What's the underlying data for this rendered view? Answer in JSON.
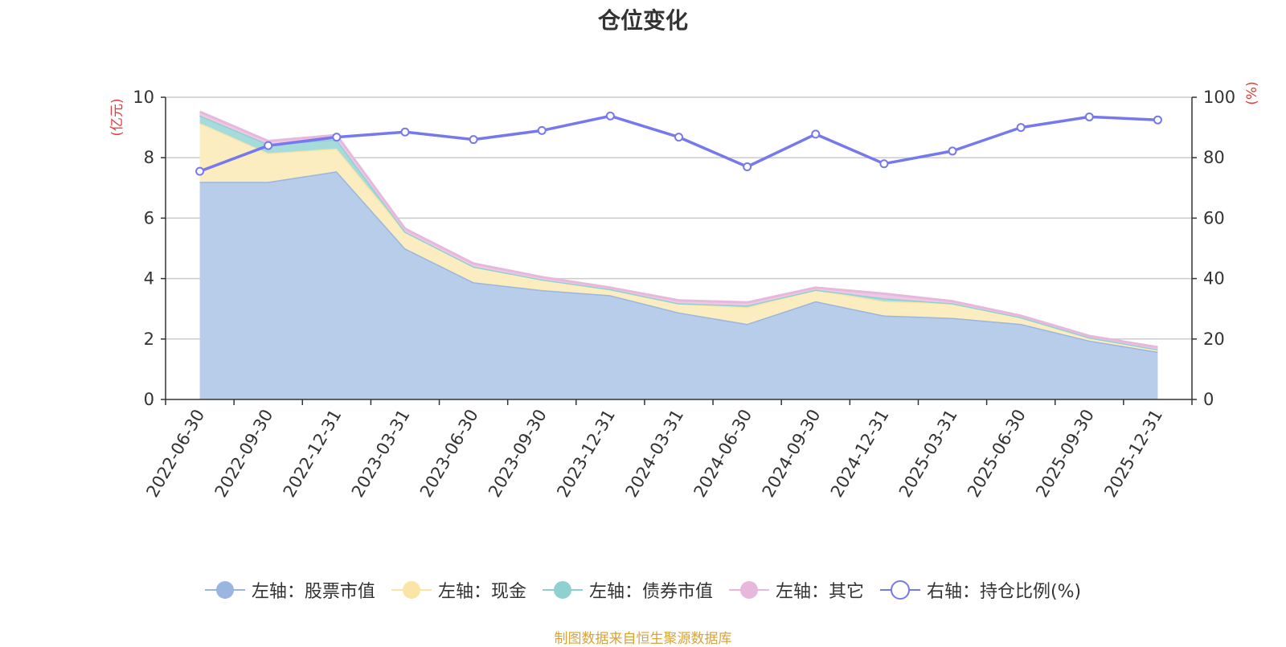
{
  "chart_data": {
    "type": "area",
    "title": "仓位变化",
    "categories": [
      "2022-06-30",
      "2022-09-30",
      "2022-12-31",
      "2023-03-31",
      "2023-06-30",
      "2023-09-30",
      "2023-12-31",
      "2024-03-31",
      "2024-06-30",
      "2024-09-30",
      "2024-12-31",
      "2025-03-31",
      "2025-06-30",
      "2025-09-30",
      "2025-12-31"
    ],
    "left_axis": {
      "label": "(亿元)",
      "ylim": [
        0,
        10
      ],
      "ticks": [
        0,
        2,
        4,
        6,
        8,
        10
      ]
    },
    "right_axis": {
      "label": "(%)",
      "ylim": [
        0,
        100
      ],
      "ticks": [
        0,
        20,
        40,
        60,
        80,
        100
      ]
    },
    "series": [
      {
        "name": "左轴：股票市值",
        "axis": "left",
        "stacked": true,
        "color": "#9ab6e0",
        "fill": "#b7cdea",
        "values": [
          7.2,
          7.2,
          7.55,
          5.0,
          3.88,
          3.62,
          3.45,
          2.88,
          2.5,
          3.25,
          2.78,
          2.7,
          2.5,
          1.95,
          1.58
        ]
      },
      {
        "name": "左轴：现金",
        "axis": "left",
        "stacked": true,
        "color": "#fbe5a6",
        "fill": "#fbedc0",
        "values": [
          1.95,
          0.95,
          0.75,
          0.55,
          0.52,
          0.35,
          0.2,
          0.3,
          0.55,
          0.38,
          0.47,
          0.48,
          0.22,
          0.1,
          0.08
        ]
      },
      {
        "name": "左轴：债券市值",
        "axis": "left",
        "stacked": true,
        "color": "#8fd1d1",
        "fill": "#a6dbdb",
        "values": [
          0.25,
          0.3,
          0.3,
          0.0,
          0.0,
          0.0,
          0.0,
          0.0,
          0.06,
          0.0,
          0.1,
          0.0,
          0.0,
          0.0,
          0.0
        ]
      },
      {
        "name": "左轴：其它",
        "axis": "left",
        "stacked": true,
        "color": "#e7b7dc",
        "fill": "#efc8e6",
        "values": [
          0.12,
          0.1,
          0.15,
          0.1,
          0.1,
          0.08,
          0.05,
          0.1,
          0.1,
          0.07,
          0.15,
          0.07,
          0.05,
          0.05,
          0.07
        ]
      },
      {
        "name": "右轴：持仓比例(%)",
        "axis": "right",
        "type": "line",
        "color": "#7678ed",
        "values": [
          75.5,
          84.0,
          86.8,
          88.5,
          86.0,
          89.0,
          93.8,
          86.8,
          77.0,
          87.8,
          78.0,
          82.2,
          90.0,
          93.5,
          92.5
        ]
      }
    ],
    "legend_position": "bottom-center",
    "grid": true
  },
  "footer": {
    "source": "制图数据来自恒生聚源数据库"
  },
  "colors": {
    "axis_label_red": "#e33b3b",
    "axis_text": "#333333",
    "grid": "#cccccc",
    "source_text": "#d8a33a"
  }
}
